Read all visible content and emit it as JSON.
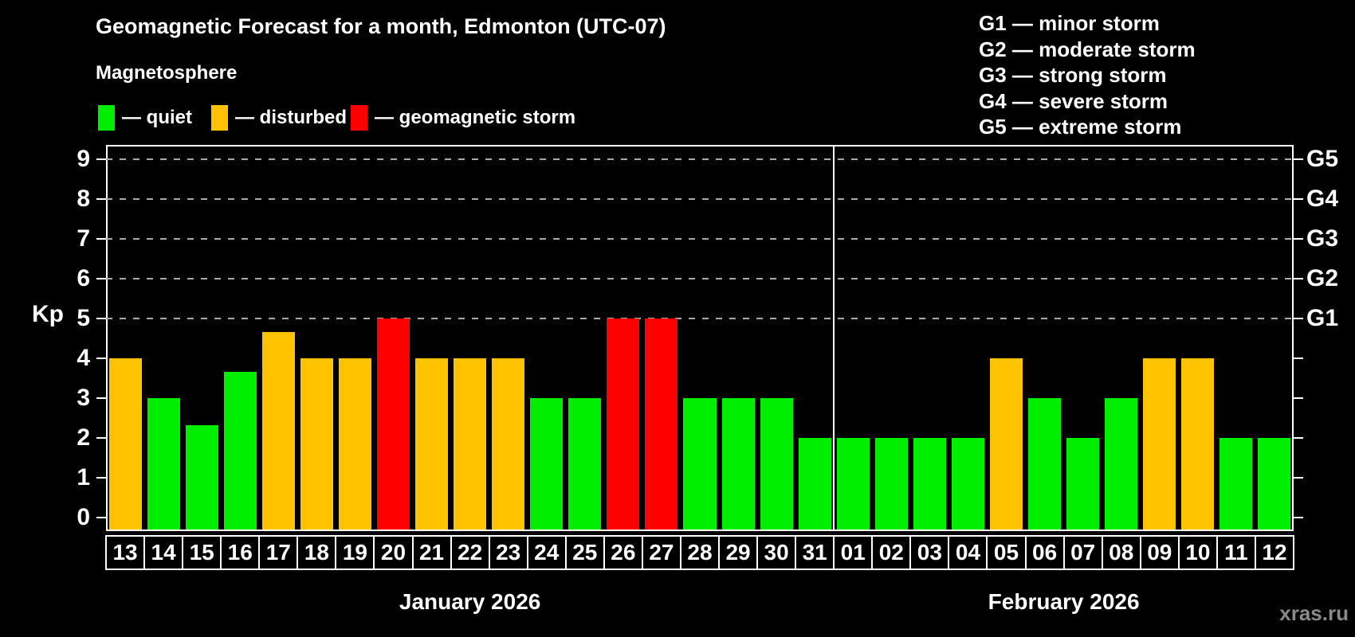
{
  "title": "Geomagnetic Forecast for a month, Edmonton (UTC-07)",
  "subtitle": "Magnetosphere",
  "watermark": "xras.ru",
  "legend": {
    "items": [
      {
        "key": "quiet",
        "label": "— quiet",
        "color": "#00ee00"
      },
      {
        "key": "disturbed",
        "label": "— disturbed",
        "color": "#ffc300"
      },
      {
        "key": "storm",
        "label": "— geomagnetic storm",
        "color": "#ff0000"
      }
    ]
  },
  "g_scale_legend": [
    "G1 — minor storm",
    "G2 — moderate storm",
    "G3 — strong storm",
    "G4 — severe storm",
    "G5 — extreme storm"
  ],
  "chart_data": {
    "type": "bar",
    "ylabel": "Kp",
    "ylim": [
      0,
      9
    ],
    "yticks": [
      "0",
      "1",
      "2",
      "3",
      "4",
      "5",
      "6",
      "7",
      "8",
      "9"
    ],
    "gridlines_at_kp": [
      5,
      6,
      7,
      8,
      9
    ],
    "grid_color": "#aaaaaa",
    "right_axis_labels": [
      {
        "kp": 5,
        "label": "G1"
      },
      {
        "kp": 6,
        "label": "G2"
      },
      {
        "kp": 7,
        "label": "G3"
      },
      {
        "kp": 8,
        "label": "G4"
      },
      {
        "kp": 9,
        "label": "G5"
      }
    ],
    "colors": {
      "quiet": "#00ee00",
      "disturbed": "#ffc300",
      "storm": "#ff0000"
    },
    "months": [
      {
        "label": "January 2026",
        "days": 19
      },
      {
        "label": "February 2026",
        "days": 12
      }
    ],
    "bars": [
      {
        "day": "13",
        "kp": 4,
        "status": "disturbed"
      },
      {
        "day": "14",
        "kp": 3,
        "status": "quiet"
      },
      {
        "day": "15",
        "kp": 2.33,
        "status": "quiet"
      },
      {
        "day": "16",
        "kp": 3.67,
        "status": "quiet"
      },
      {
        "day": "17",
        "kp": 4.67,
        "status": "disturbed"
      },
      {
        "day": "18",
        "kp": 4,
        "status": "disturbed"
      },
      {
        "day": "19",
        "kp": 4,
        "status": "disturbed"
      },
      {
        "day": "20",
        "kp": 5,
        "status": "storm"
      },
      {
        "day": "21",
        "kp": 4,
        "status": "disturbed"
      },
      {
        "day": "22",
        "kp": 4,
        "status": "disturbed"
      },
      {
        "day": "23",
        "kp": 4,
        "status": "disturbed"
      },
      {
        "day": "24",
        "kp": 3,
        "status": "quiet"
      },
      {
        "day": "25",
        "kp": 3,
        "status": "quiet"
      },
      {
        "day": "26",
        "kp": 5,
        "status": "storm"
      },
      {
        "day": "27",
        "kp": 5,
        "status": "storm"
      },
      {
        "day": "28",
        "kp": 3,
        "status": "quiet"
      },
      {
        "day": "29",
        "kp": 3,
        "status": "quiet"
      },
      {
        "day": "30",
        "kp": 3,
        "status": "quiet"
      },
      {
        "day": "31",
        "kp": 2,
        "status": "quiet"
      },
      {
        "day": "01",
        "kp": 2,
        "status": "quiet"
      },
      {
        "day": "02",
        "kp": 2,
        "status": "quiet"
      },
      {
        "day": "03",
        "kp": 2,
        "status": "quiet"
      },
      {
        "day": "04",
        "kp": 2,
        "status": "quiet"
      },
      {
        "day": "05",
        "kp": 4,
        "status": "disturbed"
      },
      {
        "day": "06",
        "kp": 3,
        "status": "quiet"
      },
      {
        "day": "07",
        "kp": 2,
        "status": "quiet"
      },
      {
        "day": "08",
        "kp": 3,
        "status": "quiet"
      },
      {
        "day": "09",
        "kp": 4,
        "status": "disturbed"
      },
      {
        "day": "10",
        "kp": 4,
        "status": "disturbed"
      },
      {
        "day": "11",
        "kp": 2,
        "status": "quiet"
      },
      {
        "day": "12",
        "kp": 2,
        "status": "quiet"
      }
    ]
  }
}
